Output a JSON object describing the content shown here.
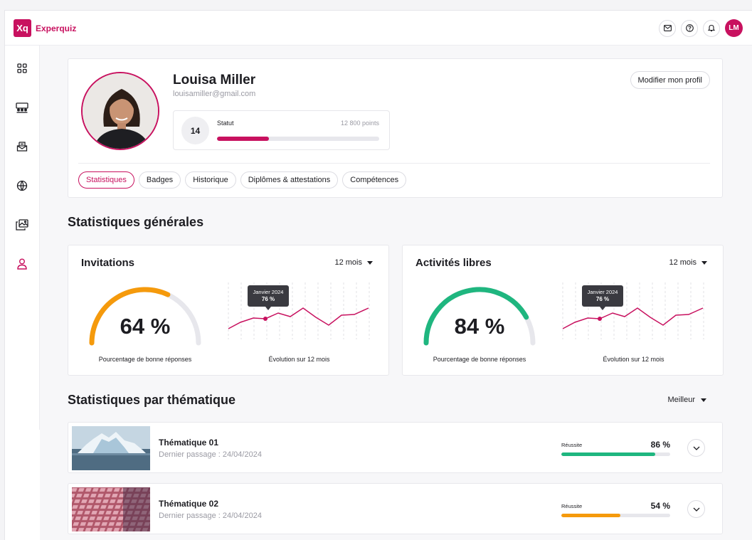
{
  "app": {
    "logo_mark": "Xq",
    "name": "Experquiz"
  },
  "header": {
    "icons": [
      "mail-icon",
      "help-icon",
      "bell-icon"
    ],
    "avatar_initials": "LM"
  },
  "sidebar": {
    "items": [
      "dashboard-icon",
      "classroom-icon",
      "inbox-icon",
      "activities-icon",
      "media-icon",
      "profile-icon"
    ],
    "active": "profile-icon"
  },
  "profile": {
    "name": "Louisa Miller",
    "email": "louisamiller@gmail.com",
    "level": "14",
    "status_label": "Statut",
    "points": "12 800 points",
    "status_progress": 0.32,
    "edit_label": "Modifier mon profil"
  },
  "tabs": [
    {
      "label": "Statistiques",
      "active": true
    },
    {
      "label": "Badges",
      "active": false
    },
    {
      "label": "Historique",
      "active": false
    },
    {
      "label": "Diplômes & attestations",
      "active": false
    },
    {
      "label": "Compétences",
      "active": false
    }
  ],
  "general": {
    "title": "Statistiques générales",
    "cards": [
      {
        "title": "Invitations",
        "period": "12 mois",
        "percent": "64 %",
        "percent_value": 0.64,
        "gauge_color": "#f59a0c",
        "gauge_caption": "Pourcentage de bonne réponses",
        "spark_caption": "Évolution sur 12 mois",
        "tooltip_date": "Janvier 2024",
        "tooltip_value": "76 %"
      },
      {
        "title": "Activités libres",
        "period": "12 mois",
        "percent": "84 %",
        "percent_value": 0.84,
        "gauge_color": "#1fb67f",
        "gauge_caption": "Pourcentage de bonne réponses",
        "spark_caption": "Évolution sur 12 mois",
        "tooltip_date": "Janvier 2024",
        "tooltip_value": "76 %"
      }
    ]
  },
  "thematic": {
    "title": "Statistiques par thématique",
    "sort_label": "Meilleur",
    "items": [
      {
        "name": "Thématique 01",
        "date": "Dernier passage : 24/04/2024",
        "label": "Réussite",
        "percent": "86 %",
        "value": 0.86,
        "color": "#1fb67f"
      },
      {
        "name": "Thématique 02",
        "date": "Dernier passage : 24/04/2024",
        "label": "Réussite",
        "percent": "54 %",
        "value": 0.54,
        "color": "#f59a0c"
      }
    ]
  },
  "colors": {
    "accent": "#c8115f",
    "track": "#e7e7ec"
  }
}
